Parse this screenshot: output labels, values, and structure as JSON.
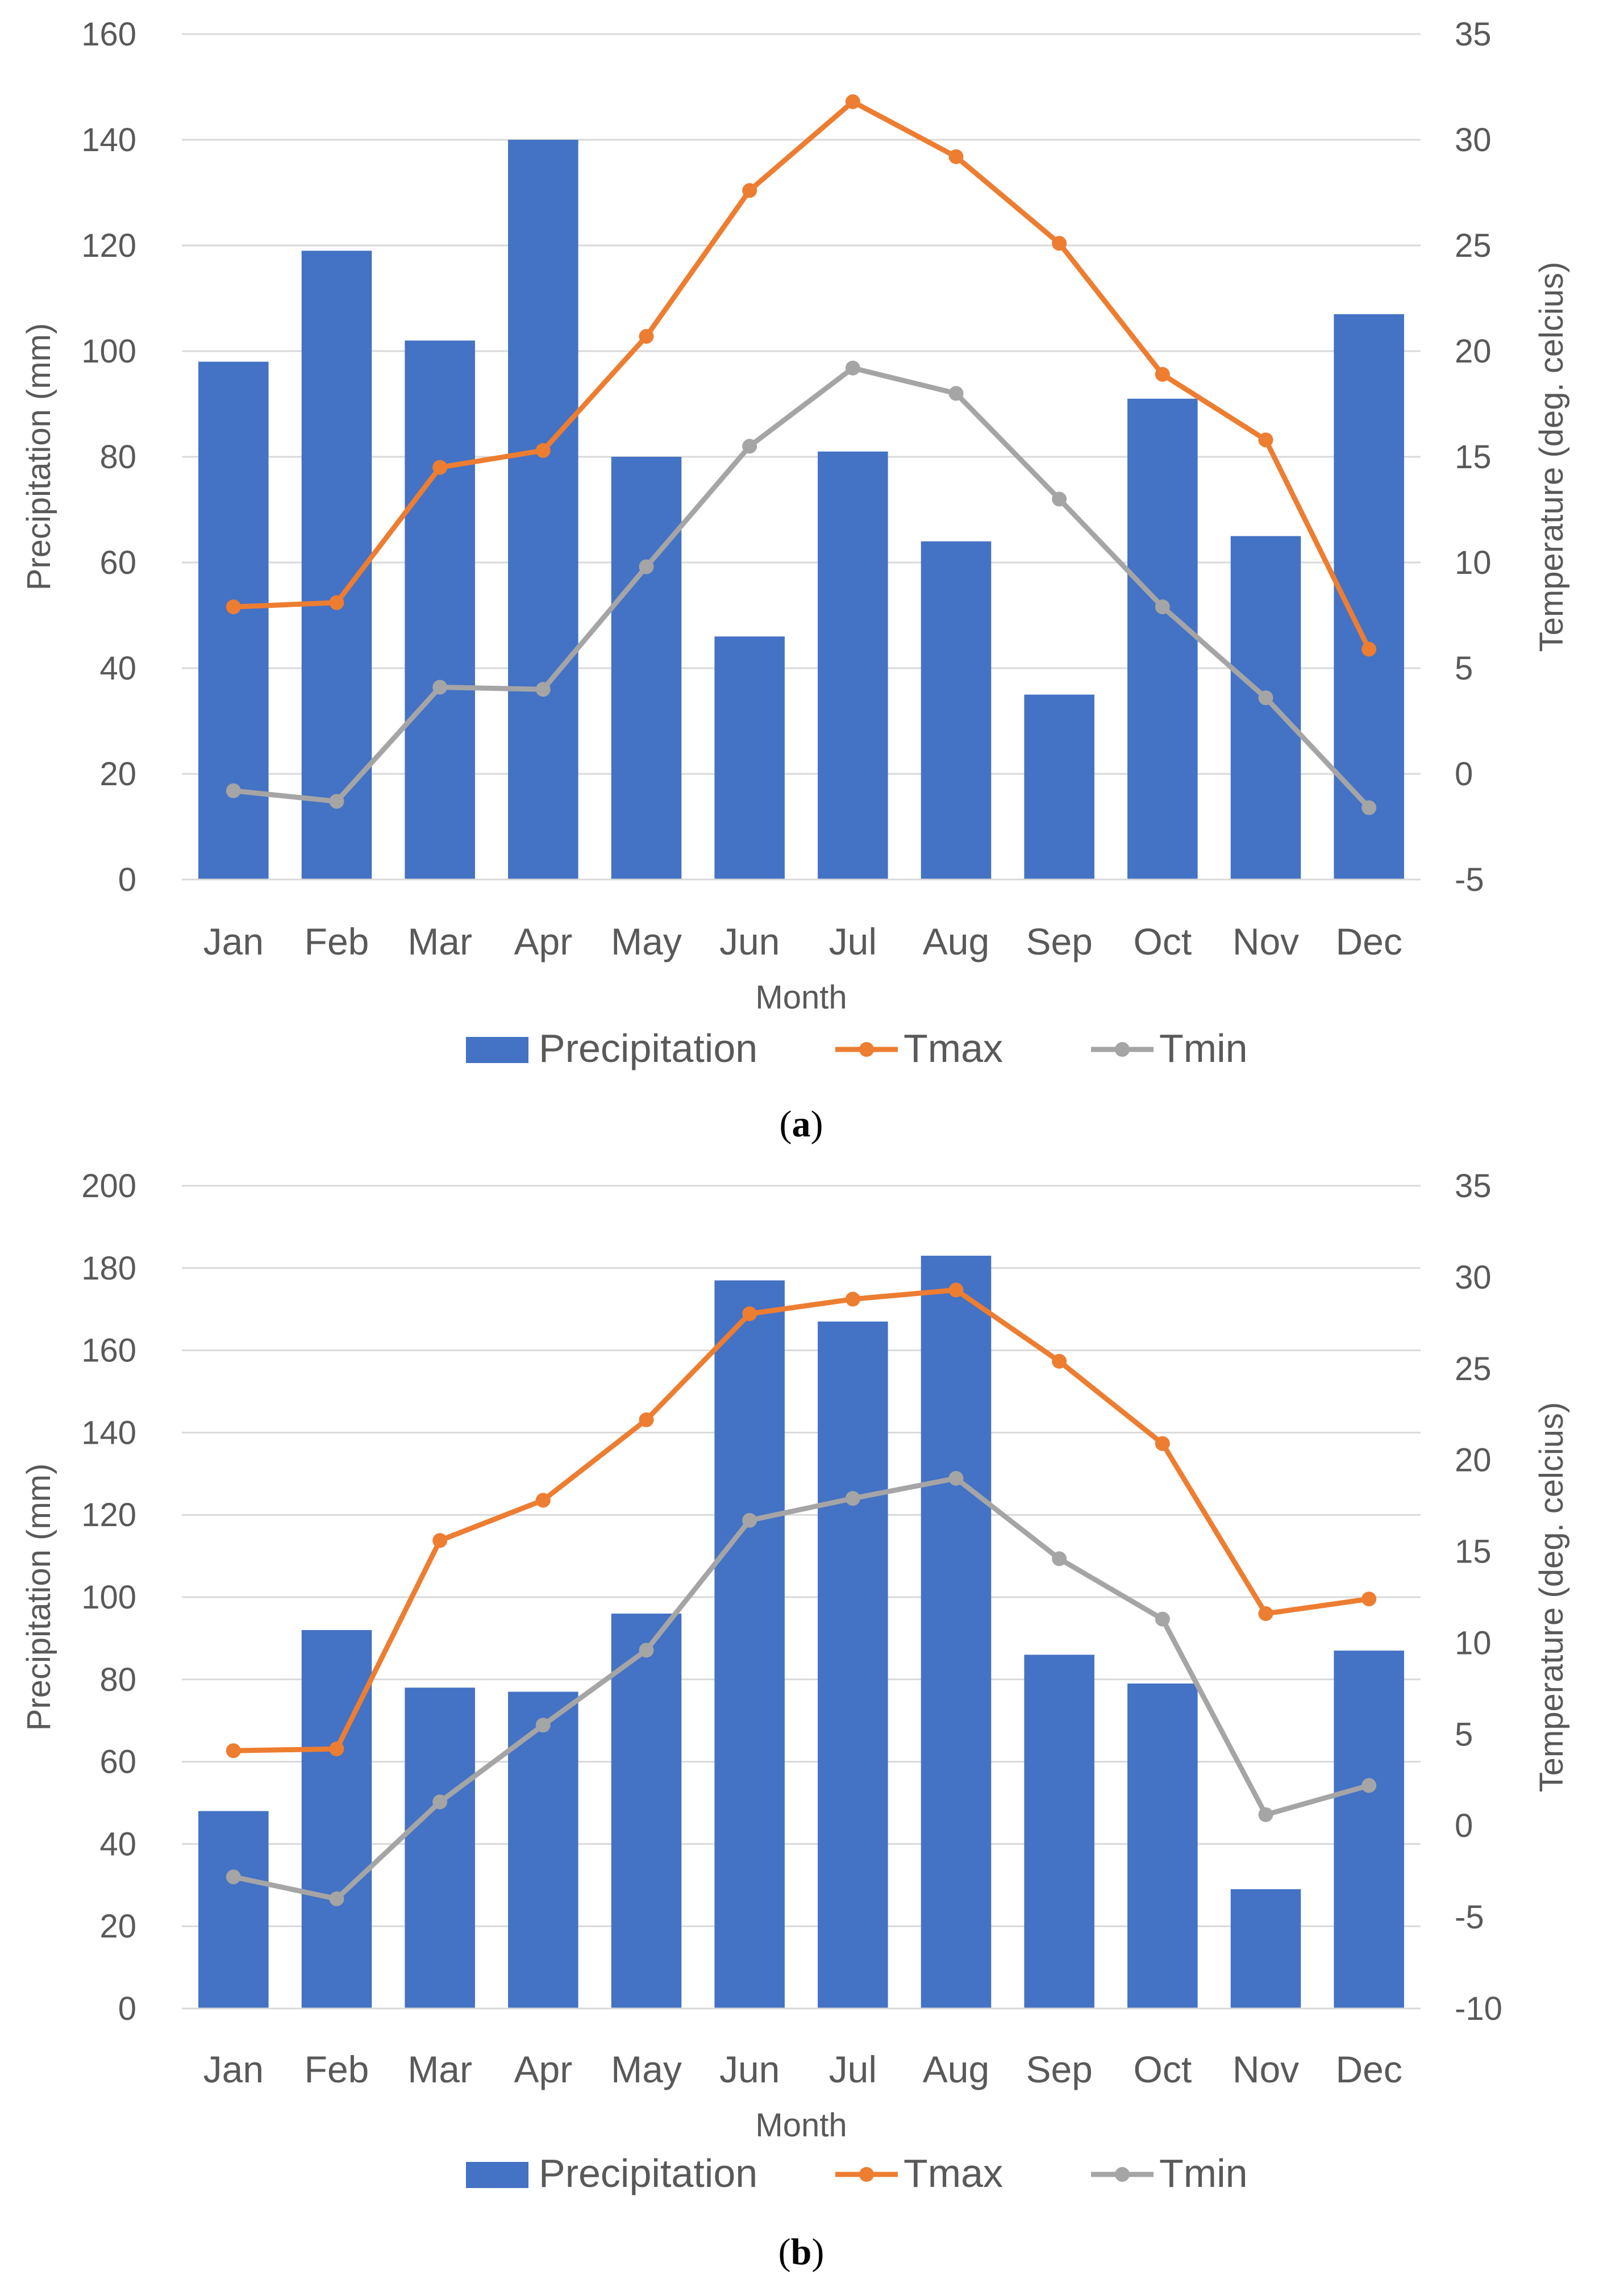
{
  "colors": {
    "precipitation": "#4472C4",
    "tmax": "#ED7D31",
    "tmin": "#A5A5A5",
    "gridline": "#D9D9D9",
    "text": "#595959"
  },
  "chart_data": [
    {
      "id": "a",
      "type": "bar+line",
      "caption": "(a)",
      "caption_open": "(",
      "caption_letter": "a",
      "caption_close": ")",
      "xlabel": "Month",
      "ylabel": "Precipitation (mm)",
      "y2label": "Temperature (deg. celcius)",
      "ylim": [
        0,
        160
      ],
      "yticks": [
        0,
        20,
        40,
        60,
        80,
        100,
        120,
        140,
        160
      ],
      "y2lim": [
        -5,
        35
      ],
      "y2ticks": [
        -5,
        0,
        5,
        10,
        15,
        20,
        25,
        30,
        35
      ],
      "grid": true,
      "legend": "bottom",
      "categories": [
        "Jan",
        "Feb",
        "Mar",
        "Apr",
        "May",
        "Jun",
        "Jul",
        "Aug",
        "Sep",
        "Oct",
        "Nov",
        "Dec"
      ],
      "series": [
        {
          "name": "Precipitation",
          "kind": "bar",
          "axis": "left",
          "values": [
            98,
            119,
            102,
            140,
            80,
            46,
            81,
            64,
            35,
            91,
            65,
            107
          ]
        },
        {
          "name": "Tmax",
          "kind": "line",
          "axis": "right",
          "values": [
            7.9,
            8.1,
            14.5,
            15.3,
            20.7,
            27.6,
            31.8,
            29.2,
            25.1,
            18.9,
            15.8,
            5.9
          ]
        },
        {
          "name": "Tmin",
          "kind": "line",
          "axis": "right",
          "values": [
            -0.8,
            -1.3,
            4.1,
            4.0,
            9.8,
            15.5,
            19.2,
            18.0,
            13.0,
            7.9,
            3.6,
            -1.6
          ]
        }
      ]
    },
    {
      "id": "b",
      "type": "bar+line",
      "caption": "(b)",
      "caption_open": "(",
      "caption_letter": "b",
      "caption_close": ")",
      "xlabel": "Month",
      "ylabel": "Precipitation (mm)",
      "y2label": "Temperature (deg. celcius)",
      "ylim": [
        0,
        200
      ],
      "yticks": [
        0,
        20,
        40,
        60,
        80,
        100,
        120,
        140,
        160,
        180,
        200
      ],
      "y2lim": [
        -10,
        35
      ],
      "y2ticks": [
        -10,
        -5,
        0,
        5,
        10,
        15,
        20,
        25,
        30,
        35
      ],
      "grid": true,
      "legend": "bottom",
      "categories": [
        "Jan",
        "Feb",
        "Mar",
        "Apr",
        "May",
        "Jun",
        "Jul",
        "Aug",
        "Sep",
        "Oct",
        "Nov",
        "Dec"
      ],
      "series": [
        {
          "name": "Precipitation",
          "kind": "bar",
          "axis": "left",
          "values": [
            48,
            92,
            78,
            77,
            96,
            177,
            167,
            183,
            86,
            79,
            29,
            87
          ]
        },
        {
          "name": "Tmax",
          "kind": "line",
          "axis": "right",
          "values": [
            4.1,
            4.2,
            15.6,
            17.8,
            22.2,
            28.0,
            28.8,
            29.3,
            25.4,
            20.9,
            11.6,
            12.4
          ]
        },
        {
          "name": "Tmin",
          "kind": "line",
          "axis": "right",
          "values": [
            -2.8,
            -4.0,
            1.3,
            5.5,
            9.6,
            16.7,
            17.9,
            19.0,
            14.6,
            11.3,
            0.6,
            2.2
          ]
        }
      ]
    }
  ]
}
